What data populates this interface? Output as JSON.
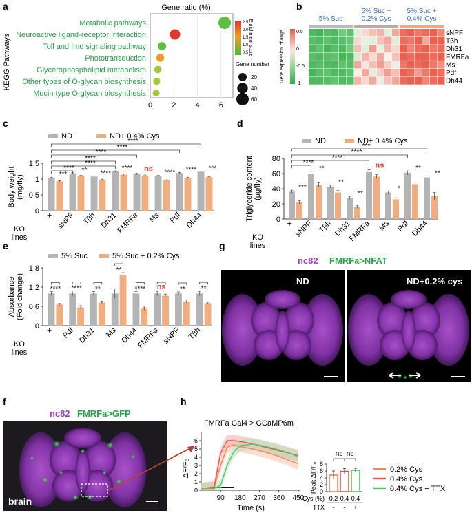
{
  "panels": {
    "a": "a",
    "b": "b",
    "c": "c",
    "d": "d",
    "e": "e",
    "f": "f",
    "g": "g",
    "h": "h"
  },
  "colors": {
    "grey": "#b4b4b4",
    "orange": "#f2ad7e",
    "green_text": "#2aa14b",
    "ns_red": "#e03030",
    "blue_text": "#3a72c4",
    "magenta": "#9b3fc8",
    "img_green": "#2fd24a"
  },
  "chart_data": [
    {
      "id": "a",
      "type": "scatter",
      "title": "Gene ratio (%)",
      "ylabel": "KEGG Pathways",
      "xticks": [
        "0",
        "2",
        "4",
        "6"
      ],
      "xlim": [
        0,
        7
      ],
      "categories": [
        "Metabolic pathways",
        "Neuroactive ligand-receptor interaction",
        "Toll and Imd signaling pathway",
        "Phototransduction",
        "Glycerophospholipid metabolism",
        "Other types of O-glycan biosynthesis",
        "Mucin type O-glycan biosynthesis"
      ],
      "x": [
        6.3,
        2.1,
        1.0,
        0.85,
        0.65,
        0.55,
        0.5
      ],
      "gene_number": [
        45,
        28,
        14,
        12,
        10,
        9,
        8
      ],
      "enrichment": [
        0.4,
        1.0,
        0.42,
        0.7,
        0.45,
        0.45,
        0.45
      ],
      "colorbar_title": "Enrichment score",
      "colorbar_ticks": [
        "2.5",
        "2.0",
        "1.5",
        "1.0",
        "0.5"
      ],
      "size_legend_title": "Gene number",
      "size_legend": [
        "20",
        "40",
        "60"
      ]
    },
    {
      "id": "b",
      "type": "heatmap",
      "groups": [
        "5% Suc",
        "5% Suc +\n0.2% Cys",
        "5% Suc +\n0.4% Cys"
      ],
      "rows": [
        "sNPF",
        "Tβh",
        "Dh31",
        "FMRFa",
        "Ms",
        "Pdf",
        "Dh44"
      ],
      "colorbar_title": "Gene expression change",
      "colorbar_ticks": [
        "0.5",
        "0",
        "-0.5",
        "-1"
      ],
      "values": [
        [
          -0.9,
          -0.95,
          -0.85,
          -0.9,
          -0.7,
          -0.8,
          -0.1,
          0.1,
          0.2,
          0.25,
          -0.1,
          0.3,
          0.55,
          0.6,
          0.5,
          0.55,
          0.6,
          0.45
        ],
        [
          -0.85,
          -0.9,
          -0.8,
          -0.9,
          -0.85,
          -0.75,
          0.1,
          -0.05,
          -0.1,
          0.2,
          0.3,
          -0.1,
          0.55,
          0.5,
          0.6,
          0.3,
          0.6,
          0.6
        ],
        [
          -0.9,
          -0.8,
          -0.95,
          -0.85,
          -0.9,
          -0.7,
          0.2,
          -0.1,
          0.35,
          -0.05,
          0.25,
          0.1,
          0.6,
          0.45,
          0.55,
          0.6,
          0.5,
          0.55
        ],
        [
          -0.85,
          -0.9,
          -0.85,
          -0.8,
          -0.95,
          -0.9,
          -0.15,
          0.25,
          0.1,
          0.3,
          0.0,
          0.2,
          0.6,
          0.55,
          0.6,
          0.6,
          0.55,
          0.6
        ],
        [
          -0.9,
          -0.85,
          -0.9,
          -0.9,
          -0.8,
          -0.85,
          0.3,
          0.05,
          0.2,
          0.35,
          0.15,
          -0.05,
          0.5,
          0.6,
          0.55,
          0.6,
          0.5,
          0.4
        ],
        [
          -0.95,
          -0.85,
          -0.8,
          -0.9,
          -0.9,
          -0.8,
          0.0,
          0.3,
          -0.1,
          0.15,
          0.35,
          0.2,
          0.6,
          0.55,
          0.35,
          0.5,
          0.6,
          0.55
        ],
        [
          -0.9,
          -0.9,
          -0.85,
          -0.8,
          -0.9,
          -0.85,
          0.25,
          0.1,
          0.3,
          -0.05,
          0.2,
          0.3,
          0.55,
          0.6,
          0.6,
          0.45,
          0.55,
          0.6
        ]
      ]
    },
    {
      "id": "c",
      "type": "bar",
      "legend": [
        "ND",
        "ND+ 0.4% Cys"
      ],
      "ylabel": "Body weight\n(mg/fly)",
      "ylim": [
        0,
        1.5
      ],
      "yticks": [
        "0",
        "0.5",
        "1",
        "1.5"
      ],
      "xlabel": "KO\nlines",
      "categories": [
        "+",
        "sNPF",
        "Tβh",
        "Dh31",
        "FMRFa",
        "Ms",
        "Pdf",
        "Dh44"
      ],
      "series": [
        {
          "name": "ND",
          "values": [
            1.04,
            1.18,
            1.08,
            1.24,
            1.16,
            1.1,
            1.19,
            1.23
          ],
          "err": [
            0.02,
            0.02,
            0.015,
            0.02,
            0.02,
            0.015,
            0.02,
            0.02
          ]
        },
        {
          "name": "ND+ 0.4% Cys",
          "values": [
            0.93,
            1.1,
            0.98,
            1.14,
            1.11,
            0.96,
            1.04,
            1.06
          ],
          "err": [
            0.02,
            0.02,
            0.015,
            0.02,
            0.02,
            0.015,
            0.02,
            0.02
          ]
        }
      ],
      "pair_sig": [
        "***",
        "**",
        "****",
        "****",
        "ns",
        "****",
        "****",
        "***"
      ],
      "brackets": [
        "****",
        "****",
        "****",
        "****",
        "****",
        "****"
      ]
    },
    {
      "id": "d",
      "type": "bar",
      "legend": [
        "ND",
        "ND+ 0.4% Cys"
      ],
      "ylabel": "Triglyceride content\n(μg/fly)",
      "ylim": [
        0,
        80
      ],
      "yticks": [
        "0",
        "20",
        "40",
        "60",
        "80"
      ],
      "xlabel": "KO\nlines",
      "categories": [
        "+",
        "sNPF",
        "Tβh",
        "Dh31",
        "FMRFa",
        "Ms",
        "Pdf",
        "Dh44"
      ],
      "series": [
        {
          "name": "ND",
          "values": [
            36,
            60,
            43,
            28,
            62,
            35,
            61,
            55
          ],
          "err": [
            2,
            3,
            2,
            2,
            3,
            2,
            2.5,
            2
          ]
        },
        {
          "name": "ND+ 0.4% Cys",
          "values": [
            22,
            45,
            35,
            16,
            56,
            26,
            46,
            30
          ],
          "err": [
            2,
            3,
            2.5,
            2,
            2.5,
            2,
            2.5,
            5
          ]
        }
      ],
      "pair_sig": [
        "***",
        "**",
        "**",
        "**",
        "ns",
        "*",
        "**",
        "**"
      ],
      "brackets": [
        "****",
        "****",
        "****",
        "***"
      ]
    },
    {
      "id": "e",
      "type": "bar",
      "legend": [
        "5% Suc",
        "5% Suc + 0.2% Cys"
      ],
      "ylabel": "Absorbance\n(Fold change)",
      "ylim": [
        0,
        1.8
      ],
      "yticks": [
        "0",
        "0.6",
        "1.2",
        "1.8"
      ],
      "xlabel": "KO\nlines",
      "categories": [
        "+",
        "Pdf",
        "Dh31",
        "Ms",
        "Dh44",
        "FMRFa",
        "sNPF",
        "Tβh"
      ],
      "series": [
        {
          "name": "5% Suc",
          "values": [
            1.0,
            1.0,
            1.0,
            1.0,
            1.0,
            1.0,
            1.0,
            1.0
          ],
          "err": [
            0.06,
            0.08,
            0.06,
            0.15,
            0.06,
            0.07,
            0.05,
            0.07
          ]
        },
        {
          "name": "5% Suc + 0.2% Cys",
          "values": [
            0.66,
            0.57,
            0.72,
            1.58,
            0.53,
            0.93,
            0.75,
            0.7
          ],
          "err": [
            0.03,
            0.05,
            0.04,
            0.07,
            0.05,
            0.05,
            0.05,
            0.03
          ]
        }
      ],
      "pair_sig": [
        "****",
        "****",
        "**",
        "**",
        "****",
        "ns",
        "**",
        "**"
      ]
    },
    {
      "id": "h_trace",
      "type": "line",
      "title": "FMRFa Gal4 > GCaMP6m",
      "ylabel": "ΔF/F₀",
      "xlabel": "Time (s)",
      "xticks": [
        "90",
        "180",
        "270",
        "360",
        "450"
      ],
      "yticks": [
        "0",
        "1",
        "2",
        "3",
        "4",
        "5",
        "6"
      ],
      "xlim": [
        0,
        460
      ],
      "ylim": [
        0,
        7
      ],
      "legend": [
        "0.2% Cys",
        "0.4% Cys",
        "0.4% Cys + TTX"
      ],
      "series": [
        {
          "name": "0.2% Cys",
          "x": [
            0,
            60,
            90,
            120,
            150,
            180,
            240,
            300,
            360,
            420,
            450
          ],
          "values": [
            0.2,
            0.3,
            3.0,
            5.2,
            5.5,
            5.3,
            5.0,
            4.6,
            4.1,
            3.5,
            3.2
          ]
        },
        {
          "name": "0.4% Cys",
          "x": [
            0,
            60,
            90,
            120,
            150,
            180,
            240,
            300,
            360,
            420,
            450
          ],
          "values": [
            0.2,
            0.4,
            4.5,
            6.0,
            6.0,
            5.9,
            5.6,
            5.2,
            4.8,
            4.4,
            4.2
          ]
        },
        {
          "name": "0.4% Cys + TTX",
          "x": [
            0,
            60,
            90,
            120,
            150,
            180,
            240,
            300,
            360,
            420,
            450
          ],
          "values": [
            0.2,
            0.2,
            0.6,
            3.0,
            4.6,
            5.4,
            5.6,
            5.3,
            4.9,
            4.4,
            4.0
          ]
        }
      ]
    },
    {
      "id": "h_peak",
      "type": "bar",
      "ylabel": "Peak  ΔF/F₀",
      "ylim": [
        0,
        8
      ],
      "yticks": [
        "0",
        "2",
        "4",
        "6",
        "8"
      ],
      "row_labels": [
        "Cys (%)",
        "TTX"
      ],
      "categories": [
        "0.2",
        "0.4",
        "0.4"
      ],
      "ttx": [
        "-",
        "-",
        "+"
      ],
      "values": [
        4.8,
        5.9,
        6.2
      ],
      "err": [
        1.2,
        0.8,
        0.6
      ],
      "sig": [
        "ns",
        "ns"
      ]
    }
  ],
  "images": {
    "g_title_left": "nc82",
    "g_title_right": "FMRFa>NFAT",
    "g_left_label": "ND",
    "g_right_label": "ND+0.2% cys",
    "f_title_left": "nc82",
    "f_title_right": "FMRFa>GFP",
    "f_label": "brain"
  }
}
